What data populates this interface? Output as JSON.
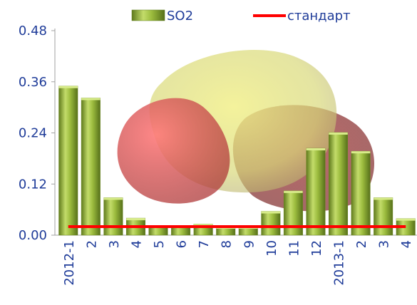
{
  "chart_data": {
    "type": "bar",
    "categories": [
      "2012-1",
      "2",
      "3",
      "4",
      "5",
      "6",
      "7",
      "8",
      "9",
      "10",
      "11",
      "12",
      "2013-1",
      "2",
      "3",
      "4"
    ],
    "series": [
      {
        "name": "SO2",
        "type": "bar",
        "color": "#8fb035",
        "values": [
          0.35,
          0.322,
          0.088,
          0.04,
          0.022,
          0.022,
          0.026,
          0.02,
          0.02,
          0.056,
          0.104,
          0.204,
          0.241,
          0.197,
          0.088,
          0.039
        ]
      },
      {
        "name": "стандарт",
        "type": "line",
        "color": "#ff0000",
        "value": 0.02
      }
    ],
    "y_ticks": [
      "0.00",
      "0.12",
      "0.24",
      "0.36",
      "0.48"
    ],
    "ylim": [
      0,
      0.48
    ],
    "grid": false,
    "legend": "top",
    "decoration": "overlapping translucent yellow and red blobs behind bars"
  }
}
